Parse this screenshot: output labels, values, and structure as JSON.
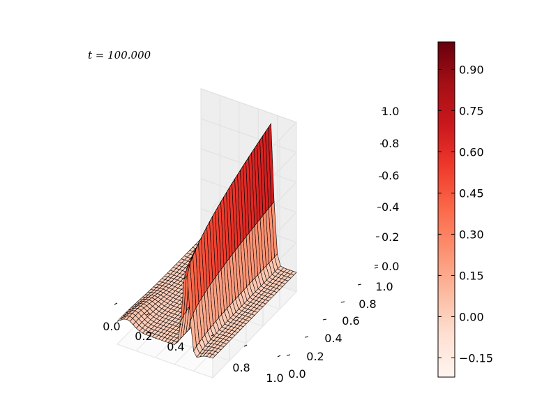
{
  "chart_data": {
    "type": "surface",
    "annotation": "t = 100.000",
    "colormap": "Reds",
    "grid": true,
    "x_ticks": [
      "0.0",
      "0.2",
      "0.4",
      "",
      "0.8",
      "1.0"
    ],
    "y_ticks": [
      "0.0",
      "0.2",
      "0.4",
      "0.6",
      "0.8",
      "1.0"
    ],
    "z_ticks": [
      "0.0",
      "0.2",
      "0.4",
      "0.6",
      "0.8",
      "1.0"
    ],
    "xlim": [
      0,
      1
    ],
    "ylim": [
      0,
      1
    ],
    "zlim": [
      0,
      1
    ],
    "colorbar": {
      "ticks": [
        "0.90",
        "0.75",
        "0.60",
        "0.45",
        "0.30",
        "0.15",
        "0.00",
        "−0.15"
      ],
      "tick_values": [
        0.9,
        0.75,
        0.6,
        0.45,
        0.3,
        0.15,
        0.0,
        -0.15
      ],
      "range": [
        -0.22,
        1.0
      ]
    }
  }
}
